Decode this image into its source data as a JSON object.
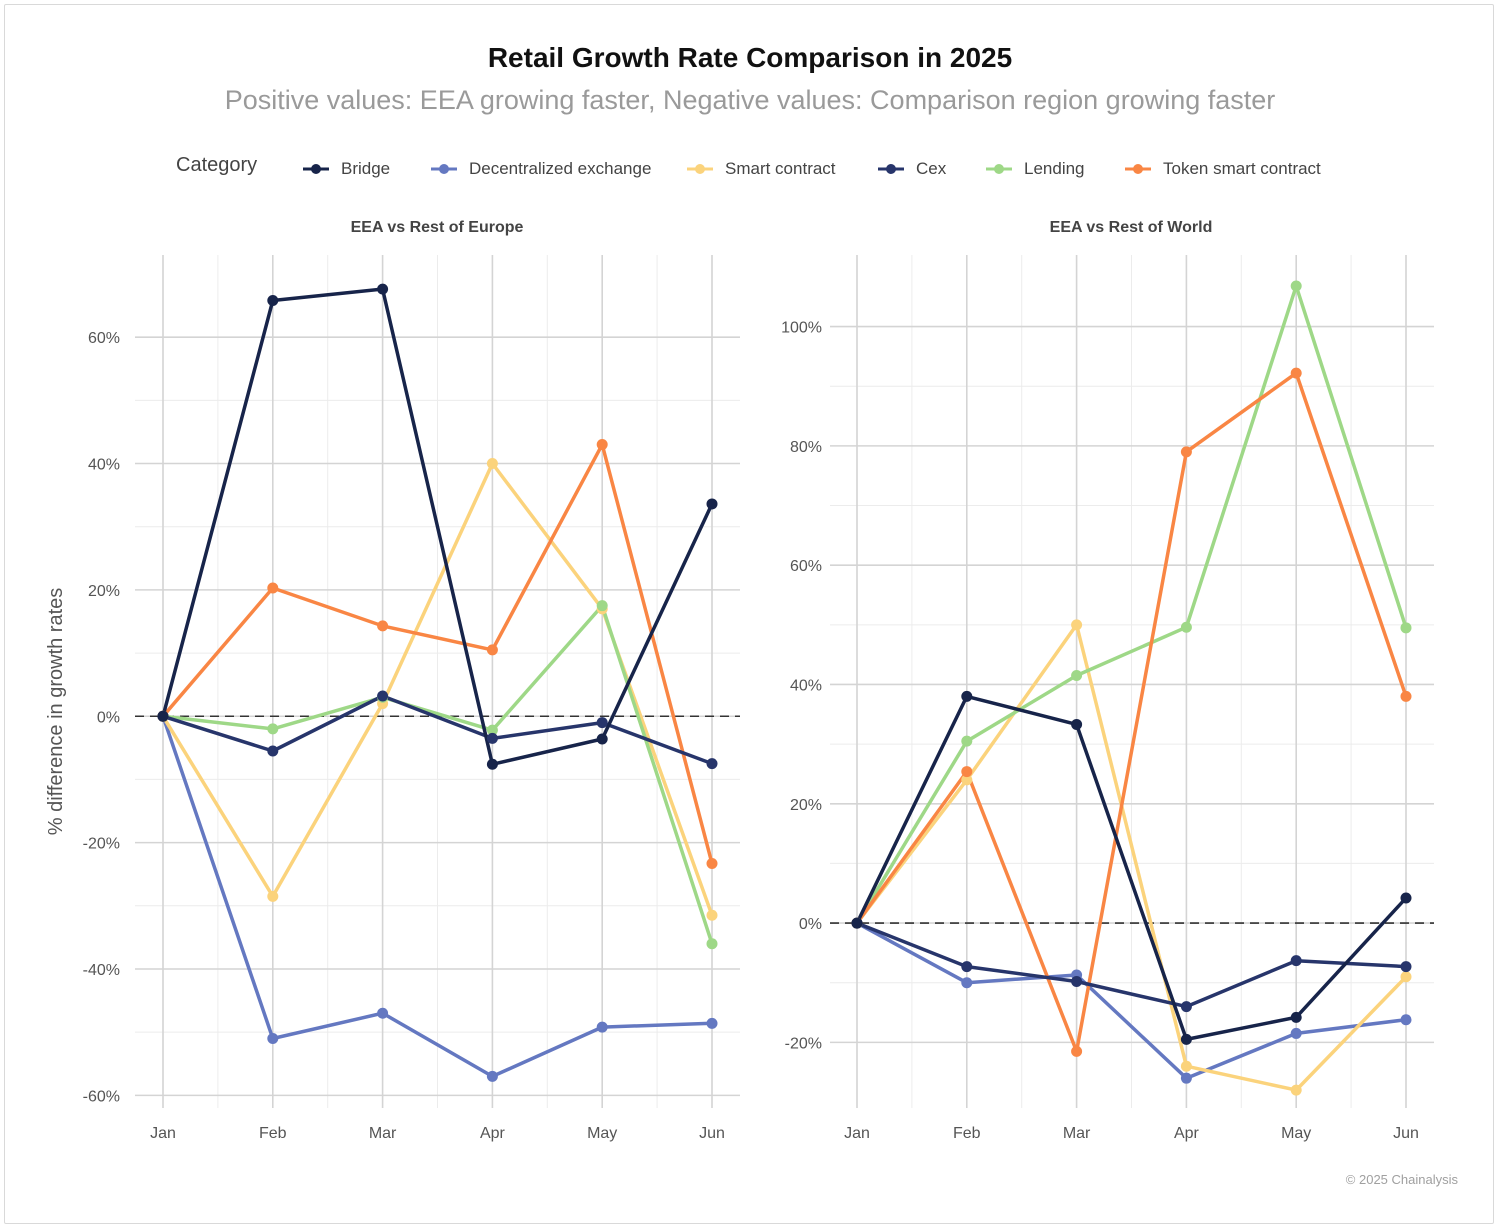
{
  "title": "Retail Growth Rate Comparison in 2025",
  "subtitle": "Positive values: EEA growing faster, Negative values: Comparison region growing faster",
  "legend": {
    "title": "Category",
    "items": [
      {
        "label": "Bridge",
        "color": "#17244a"
      },
      {
        "label": "Decentralized exchange",
        "color": "#6478c1"
      },
      {
        "label": "Smart contract",
        "color": "#fbd37c"
      },
      {
        "label": "Cex",
        "color": "#27356b"
      },
      {
        "label": "Lending",
        "color": "#9ed887"
      },
      {
        "label": "Token smart contract",
        "color": "#f98644"
      }
    ]
  },
  "footer": "© 2025 Chainalysis",
  "chart_data": [
    {
      "type": "line",
      "title": "EEA vs Rest of Europe",
      "xlabel": "",
      "ylabel": "% difference in growth rates",
      "categories": [
        "Jan",
        "Feb",
        "Mar",
        "Apr",
        "May",
        "Jun"
      ],
      "ylim": [
        -62,
        73
      ],
      "yticks": [
        -60,
        -40,
        -20,
        0,
        20,
        40,
        60
      ],
      "ytick_labels": [
        "-60%",
        "-40%",
        "-20%",
        "0%",
        "20%",
        "40%",
        "60%"
      ],
      "series": [
        {
          "name": "Decentralized exchange",
          "values": [
            0,
            -51,
            -47,
            -57,
            -49.2,
            -48.6
          ]
        },
        {
          "name": "Smart contract",
          "values": [
            0,
            -28.5,
            2,
            40,
            17,
            -31.5
          ]
        },
        {
          "name": "Lending",
          "values": [
            0,
            -2,
            3,
            -2.2,
            17.5,
            -36
          ]
        },
        {
          "name": "Token smart contract",
          "values": [
            0,
            20.3,
            14.3,
            10.5,
            43,
            -23.3
          ]
        },
        {
          "name": "Cex",
          "values": [
            0,
            -5.5,
            3.2,
            -3.5,
            -1,
            -7.5
          ]
        },
        {
          "name": "Bridge",
          "values": [
            0,
            65.8,
            67.6,
            -7.6,
            -3.6,
            33.6
          ]
        }
      ]
    },
    {
      "type": "line",
      "title": "EEA vs Rest of World",
      "xlabel": "",
      "ylabel": "",
      "categories": [
        "Jan",
        "Feb",
        "Mar",
        "Apr",
        "May",
        "Jun"
      ],
      "ylim": [
        -31,
        112
      ],
      "yticks": [
        -20,
        0,
        20,
        40,
        60,
        80,
        100
      ],
      "ytick_labels": [
        "-20%",
        "0%",
        "20%",
        "40%",
        "60%",
        "80%",
        "100%"
      ],
      "series": [
        {
          "name": "Decentralized exchange",
          "values": [
            0,
            -10,
            -8.7,
            -26,
            -18.5,
            -16.2
          ]
        },
        {
          "name": "Smart contract",
          "values": [
            0,
            24,
            50,
            -24,
            -28,
            -9
          ]
        },
        {
          "name": "Lending",
          "values": [
            0,
            30.5,
            41.5,
            49.6,
            106.8,
            49.5
          ]
        },
        {
          "name": "Token smart contract",
          "values": [
            0,
            25.4,
            -21.5,
            79,
            92.2,
            38
          ]
        },
        {
          "name": "Cex",
          "values": [
            0,
            -7.3,
            -9.8,
            -14,
            -6.3,
            -7.3
          ]
        },
        {
          "name": "Bridge",
          "values": [
            0,
            38,
            33.3,
            -19.5,
            -15.8,
            4.2
          ]
        }
      ]
    }
  ]
}
